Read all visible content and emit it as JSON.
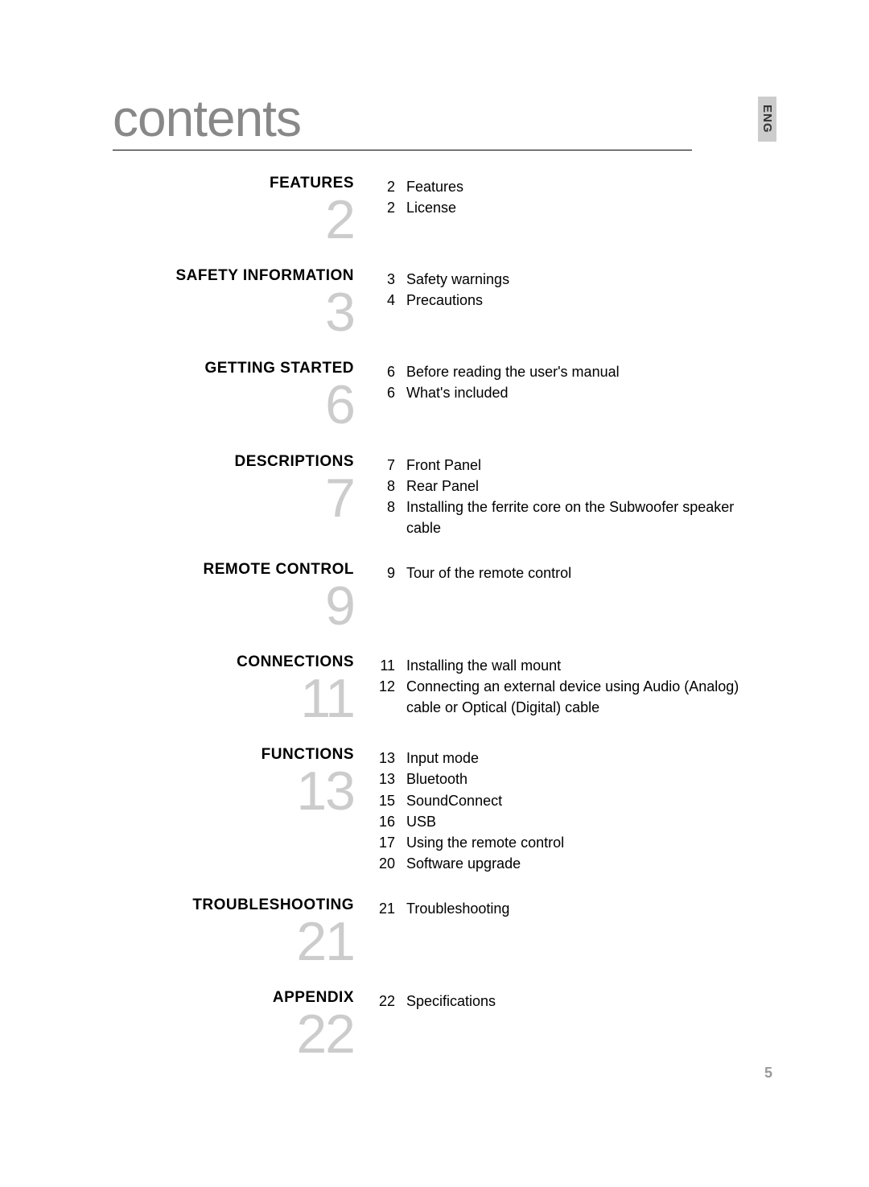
{
  "title": "contents",
  "language_tab": "ENG",
  "page_number": "5",
  "sections": [
    {
      "title": "FEATURES",
      "number": "2",
      "items": [
        {
          "page": "2",
          "text": "Features"
        },
        {
          "page": "2",
          "text": "License"
        }
      ]
    },
    {
      "title": "SAFETY INFORMATION",
      "number": "3",
      "items": [
        {
          "page": "3",
          "text": "Safety warnings"
        },
        {
          "page": "4",
          "text": "Precautions"
        }
      ]
    },
    {
      "title": "GETTING STARTED",
      "number": "6",
      "items": [
        {
          "page": "6",
          "text": "Before reading the user's manual"
        },
        {
          "page": "6",
          "text": "What's included"
        }
      ]
    },
    {
      "title": "DESCRIPTIONS",
      "number": "7",
      "items": [
        {
          "page": "7",
          "text": "Front Panel"
        },
        {
          "page": "8",
          "text": "Rear Panel"
        },
        {
          "page": "8",
          "text": "Installing the ferrite core on the Subwoofer speaker cable"
        }
      ]
    },
    {
      "title": "REMOTE CONTROL",
      "number": "9",
      "items": [
        {
          "page": "9",
          "text": "Tour of the remote control"
        }
      ]
    },
    {
      "title": "CONNECTIONS",
      "number": "11",
      "items": [
        {
          "page": "11",
          "text": "Installing the wall mount"
        },
        {
          "page": "12",
          "text": "Connecting an external device using Audio (Analog) cable or Optical (Digital) cable"
        }
      ]
    },
    {
      "title": "FUNCTIONS",
      "number": "13",
      "items": [
        {
          "page": "13",
          "text": "Input mode"
        },
        {
          "page": "13",
          "text": "Bluetooth"
        },
        {
          "page": "15",
          "text": "SoundConnect"
        },
        {
          "page": "16",
          "text": "USB"
        },
        {
          "page": "17",
          "text": "Using the remote control"
        },
        {
          "page": "20",
          "text": "Software upgrade"
        }
      ]
    },
    {
      "title": "TROUBLESHOOTING",
      "number": "21",
      "items": [
        {
          "page": "21",
          "text": "Troubleshooting"
        }
      ]
    },
    {
      "title": "APPENDIX",
      "number": "22",
      "items": [
        {
          "page": "22",
          "text": "Specifications"
        }
      ]
    }
  ]
}
